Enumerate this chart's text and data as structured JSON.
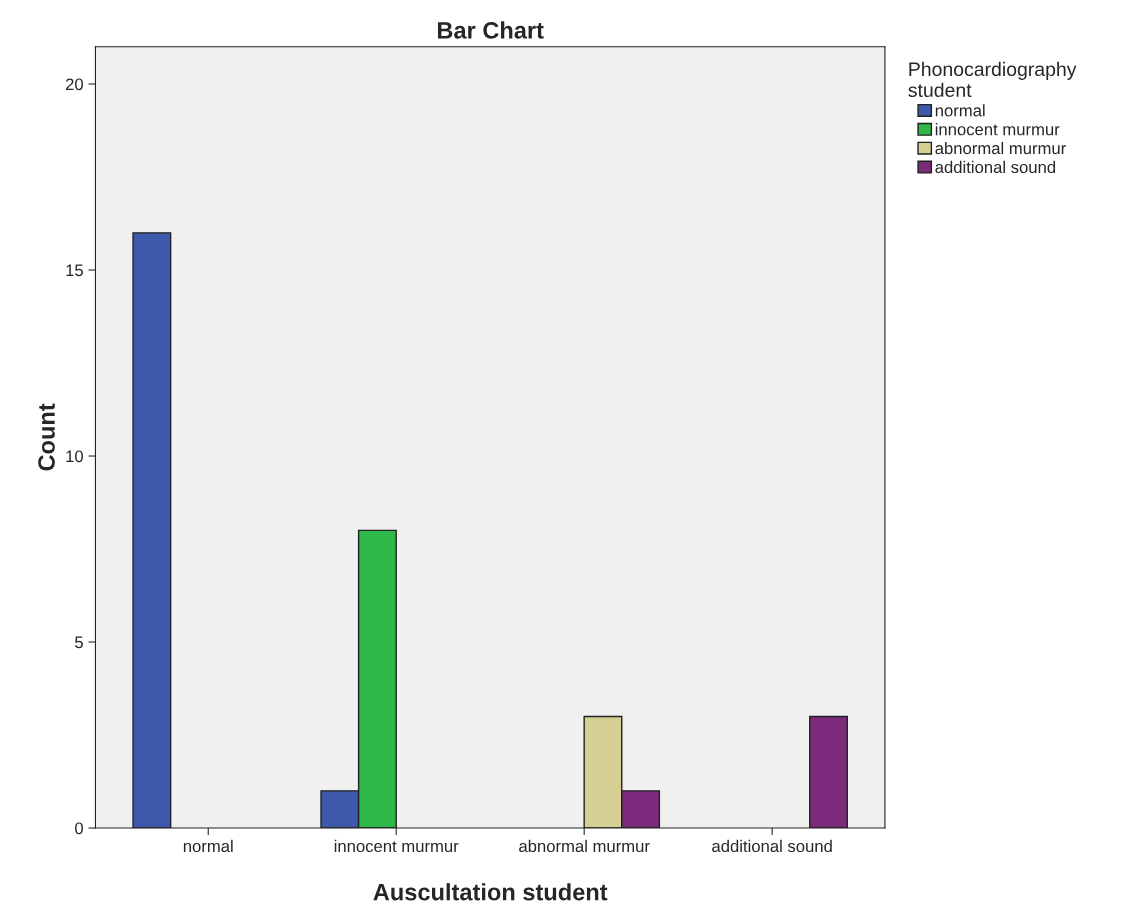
{
  "chart_data": {
    "type": "bar",
    "title": "Bar Chart",
    "xlabel": "Auscultation student",
    "ylabel": "Count",
    "legend_title": "Phonocardiography\nstudent",
    "categories": [
      "normal",
      "innocent murmur",
      "abnormal murmur",
      "additional sound"
    ],
    "series": [
      {
        "name": "normal",
        "color": "#3e58ac",
        "values": [
          16,
          1,
          0,
          0
        ]
      },
      {
        "name": "innocent murmur",
        "color": "#2fb84a",
        "values": [
          0,
          8,
          0,
          0
        ]
      },
      {
        "name": "abnormal murmur",
        "color": "#d5cf94",
        "values": [
          0,
          0,
          3,
          0
        ]
      },
      {
        "name": "additional sound",
        "color": "#7b2a7b",
        "values": [
          0,
          0,
          1,
          3
        ]
      }
    ],
    "ylim": [
      0,
      21
    ],
    "yticks": [
      0,
      5,
      10,
      15,
      20
    ],
    "grid": false,
    "legend": "top right"
  }
}
